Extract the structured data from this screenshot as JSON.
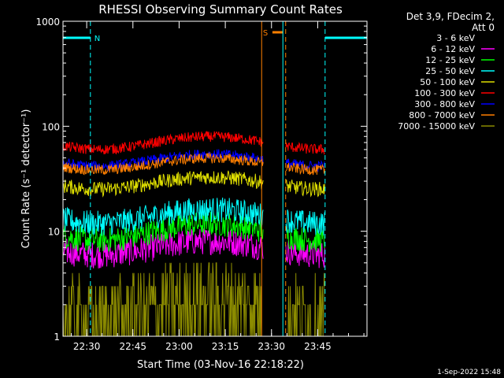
{
  "chart_data": {
    "type": "line",
    "title": "RHESSI Observing Summary Count Rates",
    "xlabel": "Start Time (03-Nov-16 22:18:22)",
    "ylabel": "Count Rate (s⁻¹ detector⁻¹)",
    "yscale": "log",
    "ylim": [
      1,
      1000
    ],
    "xlim_minutes": [
      22.3,
      121.0
    ],
    "y_ticks": [
      {
        "v": 1,
        "label": "1"
      },
      {
        "v": 10,
        "label": "10"
      },
      {
        "v": 100,
        "label": "100"
      },
      {
        "v": 1000,
        "label": "1000"
      }
    ],
    "x_ticks": [
      {
        "m": 30,
        "label": "22:30"
      },
      {
        "m": 45,
        "label": "22:45"
      },
      {
        "m": 60,
        "label": "23:00"
      },
      {
        "m": 75,
        "label": "23:15"
      },
      {
        "m": 90,
        "label": "23:30"
      },
      {
        "m": 105,
        "label": "23:45"
      }
    ],
    "legend_header": [
      "Det 3,9, FDecim 2,",
      "Att 0"
    ],
    "legend_placement": "right",
    "series": [
      {
        "name": "3 - 6 keV",
        "color": "#000000",
        "base": 11,
        "amp": 0.18,
        "noise": 0.12
      },
      {
        "name": "6 - 12 keV",
        "color": "#ff00ff",
        "base": 7,
        "amp": 0.15,
        "noise": 0.13
      },
      {
        "name": "12 - 25 keV",
        "color": "#00ff00",
        "base": 10,
        "amp": 0.18,
        "noise": 0.12
      },
      {
        "name": "25 - 50 keV",
        "color": "#00ffff",
        "base": 14,
        "amp": 0.15,
        "noise": 0.12
      },
      {
        "name": "50 - 100 keV",
        "color": "#dddd00",
        "base": 29,
        "amp": 0.13,
        "noise": 0.07
      },
      {
        "name": "100 - 300 keV",
        "color": "#ff0000",
        "base": 70,
        "amp": 0.14,
        "noise": 0.05
      },
      {
        "name": "300 - 800 keV",
        "color": "#0000ff",
        "base": 48,
        "amp": 0.13,
        "noise": 0.05
      },
      {
        "name": "800 - 7000 keV",
        "color": "#ff7f00",
        "base": 44,
        "amp": 0.13,
        "noise": 0.05
      },
      {
        "name": "7000 - 15000 keV",
        "color": "#8b8b00",
        "base": 1.8,
        "amp": 0.2,
        "noise": 0.4
      }
    ],
    "night_intervals": [
      [
        22.3,
        31.2
      ],
      [
        107.4,
        121.0
      ]
    ],
    "night_label": "N",
    "night_color": "#00ffff",
    "saa_interval": [
      90.3,
      93.7
    ],
    "saa_label": "S",
    "saa_color": "#ff7f00",
    "data_gaps": [
      [
        87.3,
        94.5
      ]
    ],
    "vertical_lines": [
      {
        "m": 22.3,
        "color": "#00ffff",
        "style": "solid"
      },
      {
        "m": 31.2,
        "color": "#00ffff",
        "style": "dashed"
      },
      {
        "m": 86.8,
        "color": "#ff7f00",
        "style": "solid"
      },
      {
        "m": 93.7,
        "color": "#00ffff",
        "style": "solid"
      },
      {
        "m": 94.6,
        "color": "#ff7f00",
        "style": "dashed"
      },
      {
        "m": 107.4,
        "color": "#00ffff",
        "style": "dashed"
      }
    ]
  },
  "footer": {
    "timestamp": "1-Sep-2022 15:48"
  }
}
